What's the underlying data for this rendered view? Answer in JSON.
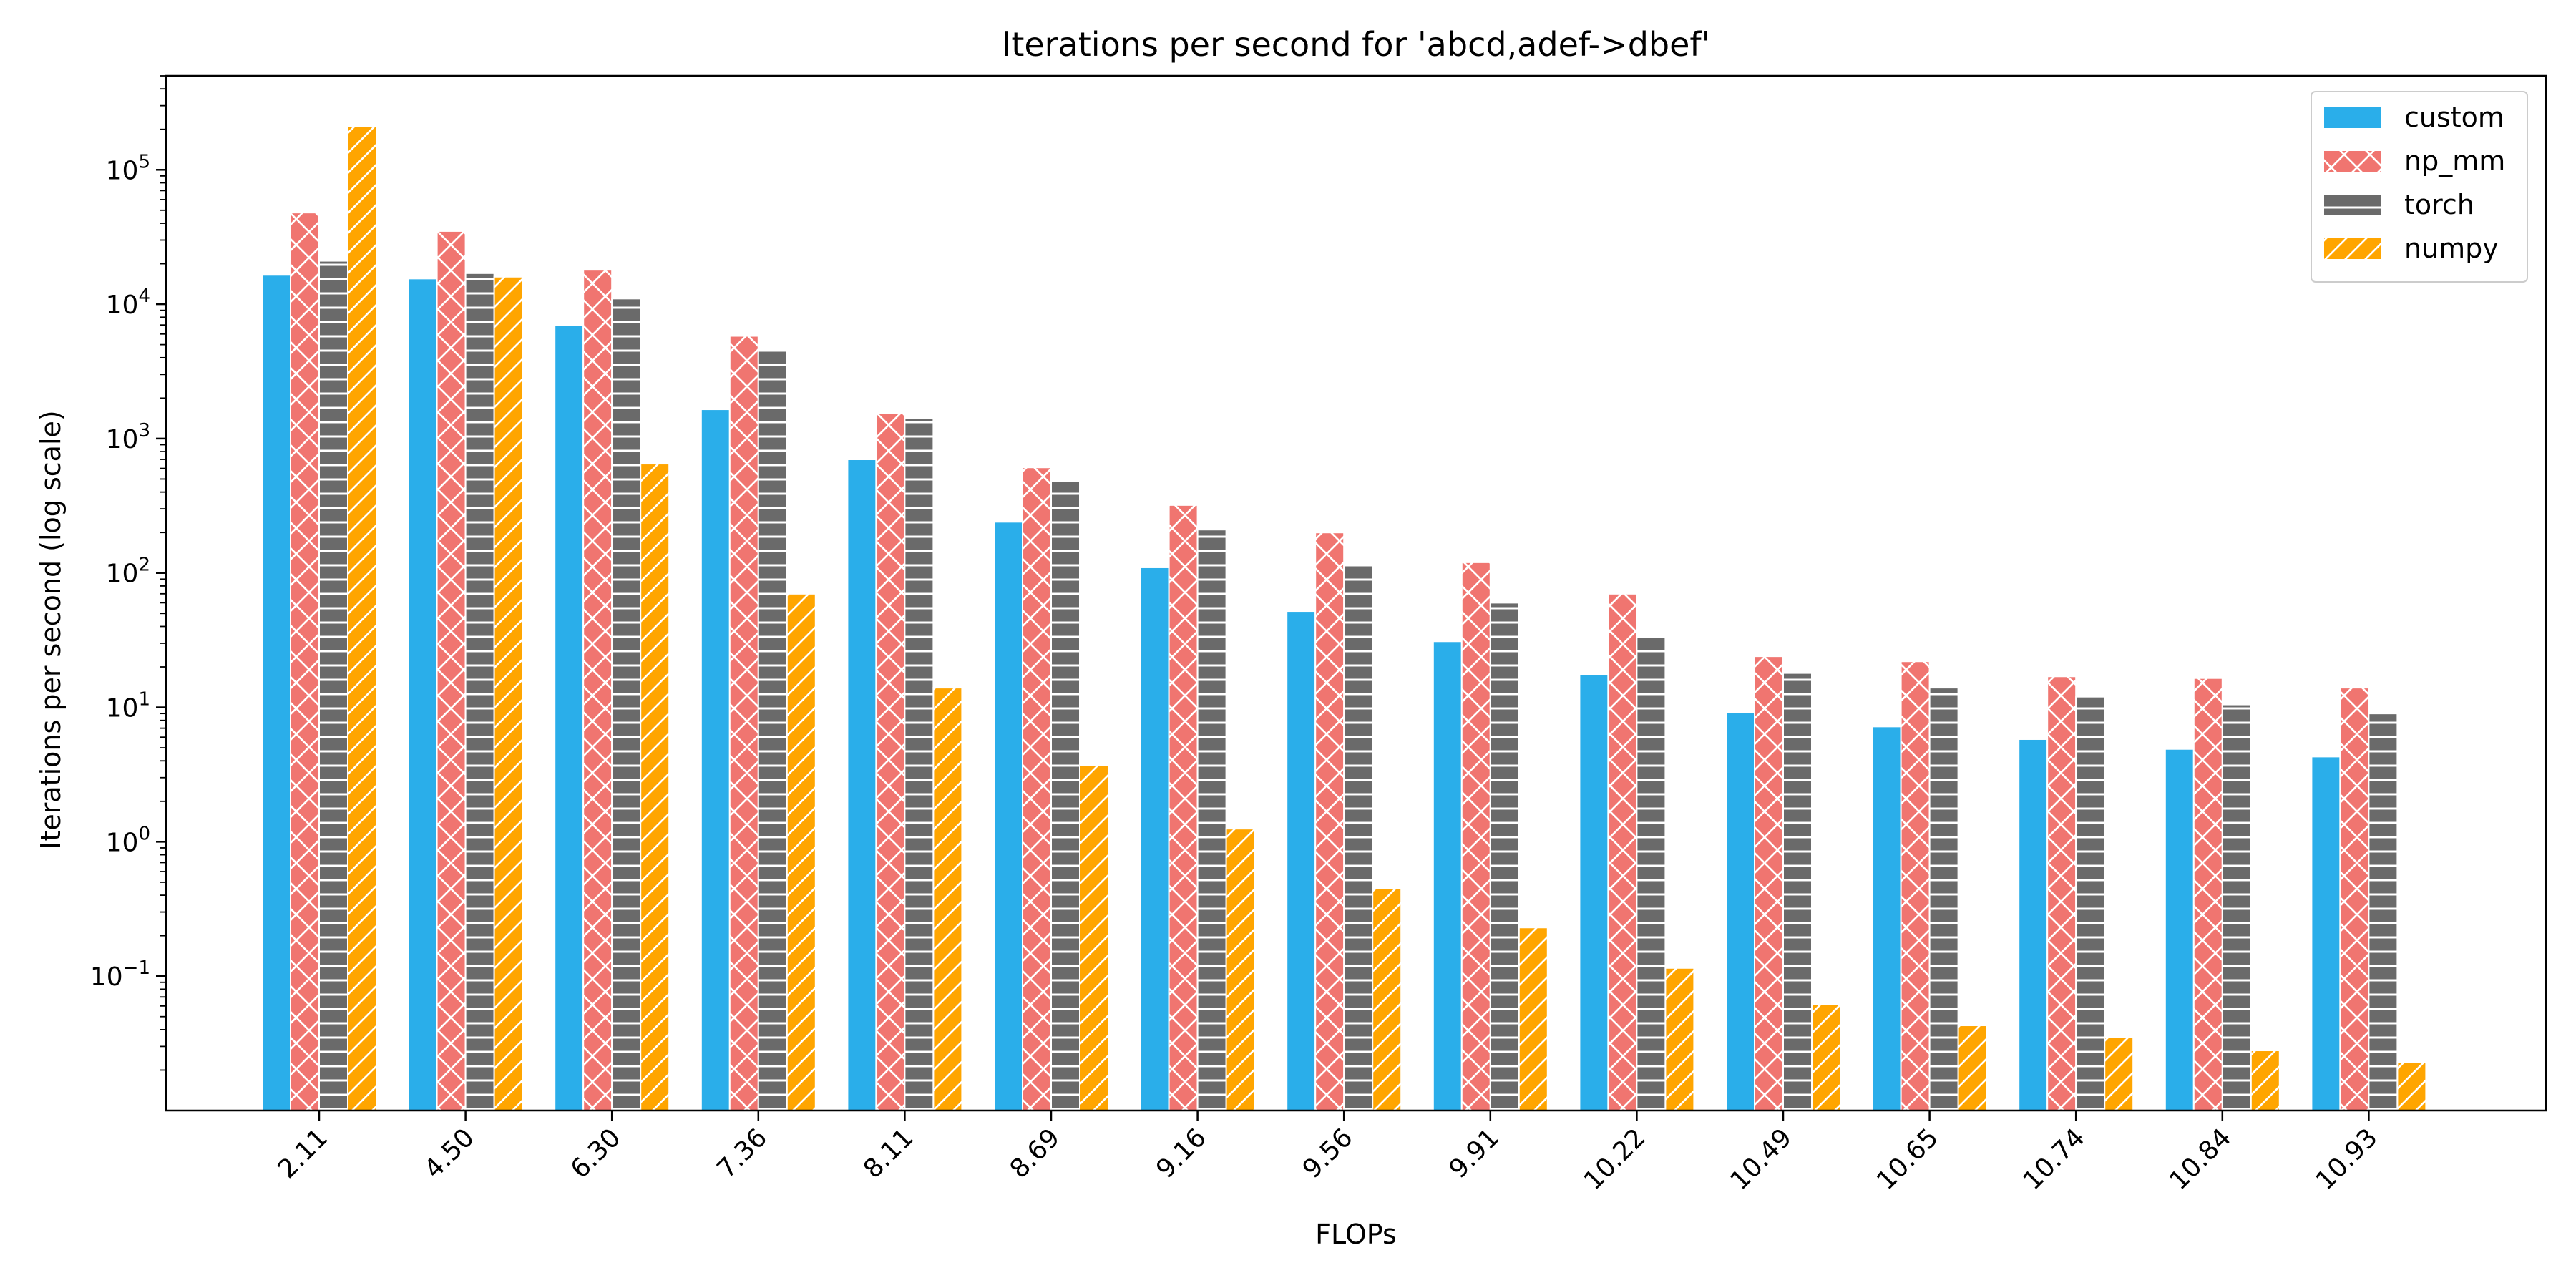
{
  "chart_data": {
    "type": "bar",
    "title": "Iterations per second for 'abcd,adef->dbef'",
    "xlabel": "FLOPs",
    "ylabel": "Iterations per second (log scale)",
    "yscale": "log",
    "ylim": [
      0.01,
      500000
    ],
    "yticks": [
      {
        "value": 0.1,
        "base": "10",
        "exp": "−1"
      },
      {
        "value": 1,
        "base": "10",
        "exp": "0"
      },
      {
        "value": 10,
        "base": "10",
        "exp": "1"
      },
      {
        "value": 100,
        "base": "10",
        "exp": "2"
      },
      {
        "value": 1000,
        "base": "10",
        "exp": "3"
      },
      {
        "value": 10000,
        "base": "10",
        "exp": "4"
      },
      {
        "value": 100000,
        "base": "10",
        "exp": "5"
      }
    ],
    "categories": [
      "2.11",
      "4.50",
      "6.30",
      "7.36",
      "8.11",
      "8.69",
      "9.16",
      "9.56",
      "9.91",
      "10.22",
      "10.49",
      "10.65",
      "10.74",
      "10.84",
      "10.93"
    ],
    "legend_position": "top-right",
    "grid": false,
    "series": [
      {
        "name": "custom",
        "color": "#2aaeea",
        "hatch": "none",
        "values": [
          16500,
          15500,
          7000,
          1650,
          700,
          240,
          110,
          52,
          31,
          17.5,
          9.2,
          7.2,
          5.8,
          4.9,
          4.3
        ]
      },
      {
        "name": "np_mm",
        "color": "#f07570",
        "hatch": "cross",
        "values": [
          48000,
          35000,
          18000,
          5800,
          1550,
          610,
          320,
          200,
          120,
          70,
          24,
          22,
          17,
          16.5,
          14
        ]
      },
      {
        "name": "torch",
        "color": "#6a6a6a",
        "hatch": "horizontal",
        "values": [
          21000,
          17000,
          11000,
          4500,
          1420,
          480,
          210,
          115,
          60,
          34,
          18,
          14,
          12,
          10.5,
          9
        ]
      },
      {
        "name": "numpy",
        "color": "#ffa500",
        "hatch": "diagonal",
        "values": [
          210000,
          16000,
          650,
          70,
          14,
          3.7,
          1.25,
          0.45,
          0.23,
          0.115,
          0.062,
          0.043,
          0.035,
          0.028,
          0.023
        ]
      }
    ]
  }
}
